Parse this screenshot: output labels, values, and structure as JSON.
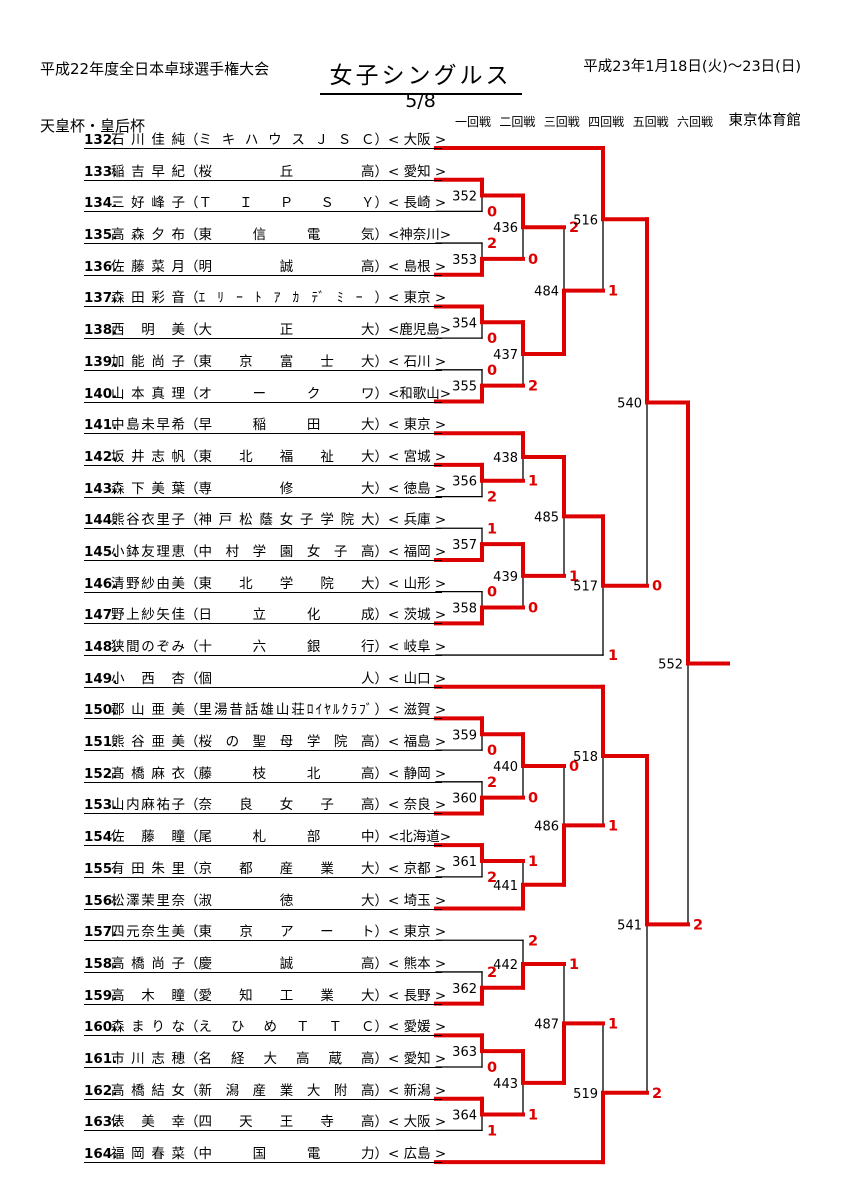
{
  "header": {
    "tournament_line1": "平成22年度全日本卓球選手権大会",
    "tournament_line2": "天皇杯・皇后杯",
    "date": "平成23年1月18日(火)～23日(日)",
    "venue": "東京体育館",
    "title": "女子シングルス",
    "sheet_number": "5/8",
    "round_labels": [
      "一回戦",
      "二回戦",
      "三回戦",
      "四回戦",
      "五回戦",
      "六回戦"
    ]
  },
  "colors": {
    "line": "#000000",
    "winner_path": "#dd0000",
    "score_digit": "#dd0000"
  },
  "players": [
    {
      "seed": 132,
      "name": "石川佳純",
      "club": "ミキハウスＪＳＣ",
      "pref": "< 大阪 >"
    },
    {
      "seed": 133,
      "name": "稲吉早紀",
      "club": "桜丘高",
      "pref": "< 愛知 >"
    },
    {
      "seed": 134,
      "name": "三好峰子",
      "club": "ＴＩＰＳＹ",
      "pref": "< 長崎 >"
    },
    {
      "seed": 135,
      "name": "高森夕布",
      "club": "東信電気",
      "pref": "<神奈川>"
    },
    {
      "seed": 136,
      "name": "佐藤菜月",
      "club": "明誠高",
      "pref": "< 島根 >"
    },
    {
      "seed": 137,
      "name": "森田彩音",
      "club": "ｴﾘｰﾄｱｶﾃﾞﾐｰ",
      "pref": "< 東京 >"
    },
    {
      "seed": 138,
      "name": "西明美",
      "club": "大正大",
      "pref": "<鹿児島>"
    },
    {
      "seed": 139,
      "name": "加能尚子",
      "club": "東京富士大",
      "pref": "< 石川 >"
    },
    {
      "seed": 140,
      "name": "山本真理",
      "club": "オークワ",
      "pref": "<和歌山>"
    },
    {
      "seed": 141,
      "name": "中島未早希",
      "club": "早稲田大",
      "pref": "< 東京 >"
    },
    {
      "seed": 142,
      "name": "坂井志帆",
      "club": "東北福祉大",
      "pref": "< 宮城 >"
    },
    {
      "seed": 143,
      "name": "森下美葉",
      "club": "専修大",
      "pref": "< 徳島 >"
    },
    {
      "seed": 144,
      "name": "熊谷衣里子",
      "club": "神戸松蔭女子学院大",
      "pref": "< 兵庫 >"
    },
    {
      "seed": 145,
      "name": "小鉢友理恵",
      "club": "中村学園女子高",
      "pref": "< 福岡 >"
    },
    {
      "seed": 146,
      "name": "清野紗由美",
      "club": "東北学院大",
      "pref": "< 山形 >"
    },
    {
      "seed": 147,
      "name": "野上紗矢佳",
      "club": "日立化成",
      "pref": "< 茨城 >"
    },
    {
      "seed": 148,
      "name": "狭間のぞみ",
      "club": "十六銀行",
      "pref": "< 岐阜 >"
    },
    {
      "seed": 149,
      "name": "小西杏",
      "club": "個人",
      "pref": "< 山口 >"
    },
    {
      "seed": 150,
      "name": "郡山亜美",
      "club": "里湯昔話雄山荘ﾛｲﾔﾙｸﾗﾌﾞ",
      "pref": "< 滋賀 >"
    },
    {
      "seed": 151,
      "name": "熊谷亜美",
      "club": "桜の聖母学院高",
      "pref": "< 福島 >"
    },
    {
      "seed": 152,
      "name": "髙橋麻衣",
      "club": "藤枝北高",
      "pref": "< 静岡 >"
    },
    {
      "seed": 153,
      "name": "山内麻祐子",
      "club": "奈良女子高",
      "pref": "< 奈良 >"
    },
    {
      "seed": 154,
      "name": "佐藤瞳",
      "club": "尾札部中",
      "pref": "<北海道>"
    },
    {
      "seed": 155,
      "name": "有田朱里",
      "club": "京都産業大",
      "pref": "< 京都 >"
    },
    {
      "seed": 156,
      "name": "松澤茉里奈",
      "club": "淑徳大",
      "pref": "< 埼玉 >"
    },
    {
      "seed": 157,
      "name": "四元奈生美",
      "club": "東京アート",
      "pref": "< 東京 >"
    },
    {
      "seed": 158,
      "name": "高橋尚子",
      "club": "慶誠高",
      "pref": "< 熊本 >"
    },
    {
      "seed": 159,
      "name": "高木瞳",
      "club": "愛知工業大",
      "pref": "< 長野 >"
    },
    {
      "seed": 160,
      "name": "森まりな",
      "club": "えひめＴＴＣ",
      "pref": "< 愛媛 >"
    },
    {
      "seed": 161,
      "name": "市川志穂",
      "club": "名経大高蔵高",
      "pref": "< 愛知 >"
    },
    {
      "seed": 162,
      "name": "高橋結女",
      "club": "新潟産業大附高",
      "pref": "< 新潟 >"
    },
    {
      "seed": 163,
      "name": "俵美幸",
      "club": "四天王寺高",
      "pref": "< 大阪 >"
    },
    {
      "seed": 164,
      "name": "福岡春菜",
      "club": "中国電力",
      "pref": "< 広島 >"
    }
  ],
  "matches": [
    {
      "no": 352,
      "round": 1,
      "top": "p133",
      "bottom": "p134",
      "winner": "top",
      "loser_games": 0
    },
    {
      "no": 353,
      "round": 1,
      "top": "p135",
      "bottom": "p136",
      "winner": "bottom",
      "loser_games": 2
    },
    {
      "no": 354,
      "round": 1,
      "top": "p137",
      "bottom": "p138",
      "winner": "top",
      "loser_games": 0
    },
    {
      "no": 355,
      "round": 1,
      "top": "p139",
      "bottom": "p140",
      "winner": "bottom",
      "loser_games": 0
    },
    {
      "no": 356,
      "round": 1,
      "top": "p142",
      "bottom": "p143",
      "winner": "top",
      "loser_games": 2
    },
    {
      "no": 357,
      "round": 1,
      "top": "p144",
      "bottom": "p145",
      "winner": "bottom",
      "loser_games": 1
    },
    {
      "no": 358,
      "round": 1,
      "top": "p146",
      "bottom": "p147",
      "winner": "bottom",
      "loser_games": 0
    },
    {
      "no": 359,
      "round": 1,
      "top": "p150",
      "bottom": "p151",
      "winner": "top",
      "loser_games": 0
    },
    {
      "no": 360,
      "round": 1,
      "top": "p152",
      "bottom": "p153",
      "winner": "bottom",
      "loser_games": 2
    },
    {
      "no": 361,
      "round": 1,
      "top": "p154",
      "bottom": "p155",
      "winner": "top",
      "loser_games": 2
    },
    {
      "no": 362,
      "round": 1,
      "top": "p158",
      "bottom": "p159",
      "winner": "bottom",
      "loser_games": 2
    },
    {
      "no": 363,
      "round": 1,
      "top": "p160",
      "bottom": "p161",
      "winner": "top",
      "loser_games": 0
    },
    {
      "no": 364,
      "round": 1,
      "top": "p162",
      "bottom": "p163",
      "winner": "top",
      "loser_games": 1
    },
    {
      "no": 436,
      "round": 2,
      "top": "m352",
      "bottom": "m353",
      "winner": "top",
      "loser_games": 0
    },
    {
      "no": 437,
      "round": 2,
      "top": "m354",
      "bottom": "m355",
      "winner": "top",
      "loser_games": 2
    },
    {
      "no": 438,
      "round": 2,
      "top": "p141",
      "bottom": "m356",
      "winner": "top",
      "loser_games": 1
    },
    {
      "no": 439,
      "round": 2,
      "top": "m357",
      "bottom": "m358",
      "winner": "top",
      "loser_games": 0
    },
    {
      "no": 440,
      "round": 2,
      "top": "m359",
      "bottom": "m360",
      "winner": "top",
      "loser_games": 0
    },
    {
      "no": 441,
      "round": 2,
      "top": "m361",
      "bottom": "p156",
      "winner": "bottom",
      "loser_games": 1
    },
    {
      "no": 442,
      "round": 2,
      "top": "p157",
      "bottom": "m362",
      "winner": "bottom",
      "loser_games": 2
    },
    {
      "no": 443,
      "round": 2,
      "top": "m363",
      "bottom": "m364",
      "winner": "top",
      "loser_games": 1
    },
    {
      "no": 484,
      "round": 3,
      "top": "m436",
      "bottom": "m437",
      "winner": "bottom",
      "loser_games": 2
    },
    {
      "no": 485,
      "round": 3,
      "top": "m438",
      "bottom": "m439",
      "winner": "top",
      "loser_games": 1
    },
    {
      "no": 486,
      "round": 3,
      "top": "m440",
      "bottom": "m441",
      "winner": "bottom",
      "loser_games": 0
    },
    {
      "no": 487,
      "round": 3,
      "top": "m442",
      "bottom": "m443",
      "winner": "bottom",
      "loser_games": 1
    },
    {
      "no": 516,
      "round": 4,
      "top": "p132",
      "bottom": "m484",
      "winner": "top",
      "loser_games": 1
    },
    {
      "no": 517,
      "round": 4,
      "top": "m485",
      "bottom": "p148",
      "winner": "top",
      "loser_games": 1
    },
    {
      "no": 518,
      "round": 4,
      "top": "p149",
      "bottom": "m486",
      "winner": "top",
      "loser_games": 1
    },
    {
      "no": 519,
      "round": 4,
      "top": "m487",
      "bottom": "p164",
      "winner": "bottom",
      "loser_games": 1
    },
    {
      "no": 540,
      "round": 5,
      "top": "m516",
      "bottom": "m517",
      "winner": "top",
      "loser_games": 0
    },
    {
      "no": 541,
      "round": 5,
      "top": "m518",
      "bottom": "m519",
      "winner": "top",
      "loser_games": 2
    },
    {
      "no": 552,
      "round": 6,
      "top": "m540",
      "bottom": "m541",
      "winner": "top",
      "loser_games": 2
    }
  ]
}
